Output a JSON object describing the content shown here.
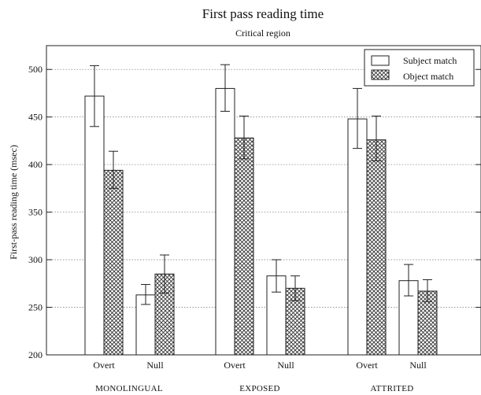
{
  "chart_data": {
    "type": "bar",
    "title": "First pass reading time",
    "subtitle": "Critical region",
    "ylabel": "First-pass reading time (msec)",
    "xlabel": "",
    "ylim": [
      200,
      525
    ],
    "yticks": [
      200,
      250,
      300,
      350,
      400,
      450,
      500
    ],
    "grid": true,
    "legend_position": "top-right",
    "groups": [
      "MONOLINGUAL",
      "EXPOSED",
      "ATTRITED"
    ],
    "subcategories": [
      "Overt",
      "Null"
    ],
    "series": [
      {
        "name": "Subject match",
        "fill": "white",
        "values": [
          [
            472,
            263
          ],
          [
            480,
            283
          ],
          [
            448,
            278
          ]
        ],
        "error_low": [
          [
            440,
            253
          ],
          [
            456,
            266
          ],
          [
            417,
            262
          ]
        ],
        "error_high": [
          [
            504,
            274
          ],
          [
            505,
            300
          ],
          [
            480,
            295
          ]
        ]
      },
      {
        "name": "Object match",
        "fill": "crosshatch",
        "values": [
          [
            394,
            285
          ],
          [
            428,
            270
          ],
          [
            426,
            267
          ]
        ],
        "error_low": [
          [
            375,
            265
          ],
          [
            406,
            257
          ],
          [
            404,
            256
          ]
        ],
        "error_high": [
          [
            414,
            305
          ],
          [
            451,
            283
          ],
          [
            451,
            279
          ]
        ]
      }
    ]
  }
}
